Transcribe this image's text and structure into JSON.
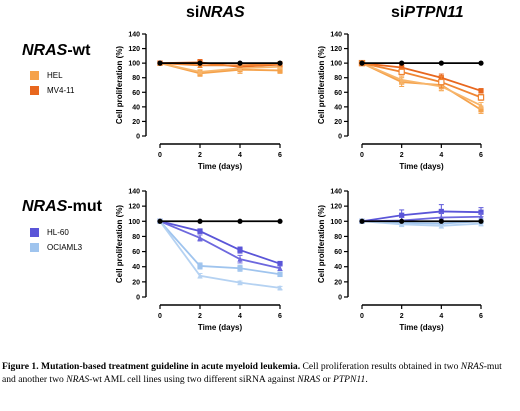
{
  "column_titles": {
    "left": {
      "prefix": "si",
      "italic": "NRAS",
      "suffix": ""
    },
    "right": {
      "prefix": "si",
      "italic": "PTPN11",
      "suffix": ""
    }
  },
  "row_titles": {
    "top": {
      "italic": "NRAS",
      "suffix": "-wt"
    },
    "bottom": {
      "italic": "NRAS",
      "suffix": "-mut"
    }
  },
  "legends": {
    "top": [
      {
        "label": "HEL",
        "color": "#f5a24b"
      },
      {
        "label": "MV4-11",
        "color": "#e8671e"
      }
    ],
    "bottom": [
      {
        "label": "HL-60",
        "color": "#5a55d8"
      },
      {
        "label": "OCIAML3",
        "color": "#9fc4ee"
      }
    ]
  },
  "caption": {
    "figure_label": "Figure 1.",
    "bold_title": "Mutation-based treatment guideline in acute myeloid leukemia.",
    "seg1": " Cell proliferation results obtained in two ",
    "it1": "NRAS",
    "seg2": "-mut and another two ",
    "it2": "NRAS",
    "seg3": "-wt AML cell lines using two different siRNA against ",
    "it3": "NRAS",
    "seg4": " or ",
    "it4": "PTPN11",
    "seg5": "."
  },
  "chart_data": [
    {
      "id": "nras-wt-sinras",
      "type": "line",
      "xlabel": "Time (days)",
      "ylabel": "Cell proliferation (%)",
      "xticks": [
        0,
        2,
        4,
        6
      ],
      "yticks": [
        0,
        20,
        40,
        60,
        80,
        100,
        120,
        140
      ],
      "xlim": [
        0,
        6
      ],
      "ylim": [
        0,
        140
      ],
      "series": [
        {
          "name": "control",
          "color": "#000000",
          "marker": "circle",
          "x": [
            0,
            2,
            4,
            6
          ],
          "y": [
            100,
            100,
            100,
            100
          ],
          "err": [
            0,
            0,
            0,
            0
          ]
        },
        {
          "name": "HEL",
          "color": "#f5a24b",
          "marker": "square",
          "x": [
            0,
            2,
            4,
            6
          ],
          "y": [
            100,
            86,
            91,
            90
          ],
          "err": [
            0,
            4,
            5,
            4
          ]
        },
        {
          "name": "MV4-11",
          "color": "#e8671e",
          "marker": "square",
          "x": [
            0,
            2,
            4,
            6
          ],
          "y": [
            100,
            101,
            95,
            98
          ],
          "err": [
            0,
            4,
            3,
            3
          ]
        },
        {
          "name": "HEL",
          "color": "#f7b56b",
          "marker": "triangle",
          "x": [
            0,
            2,
            4,
            6
          ],
          "y": [
            100,
            88,
            93,
            95
          ],
          "err": [
            0,
            3,
            3,
            3
          ]
        },
        {
          "name": "MV4-11",
          "color": "#ef8533",
          "marker": "triangle",
          "x": [
            0,
            2,
            4,
            6
          ],
          "y": [
            100,
            97,
            97,
            99
          ],
          "err": [
            0,
            3,
            3,
            3
          ]
        }
      ]
    },
    {
      "id": "nras-wt-siptpn11",
      "type": "line",
      "xlabel": "Time (days)",
      "ylabel": "Cell proliferation (%)",
      "xticks": [
        0,
        2,
        4,
        6
      ],
      "yticks": [
        0,
        20,
        40,
        60,
        80,
        100,
        120,
        140
      ],
      "xlim": [
        0,
        6
      ],
      "ylim": [
        0,
        140
      ],
      "series": [
        {
          "name": "control",
          "color": "#000000",
          "marker": "circle",
          "x": [
            0,
            2,
            4,
            6
          ],
          "y": [
            100,
            100,
            100,
            100
          ],
          "err": [
            0,
            0,
            0,
            0
          ]
        },
        {
          "name": "HEL",
          "color": "#f5a24b",
          "marker": "square",
          "x": [
            0,
            2,
            4,
            6
          ],
          "y": [
            100,
            74,
            70,
            36
          ],
          "err": [
            0,
            6,
            7,
            5
          ]
        },
        {
          "name": "HEL",
          "color": "#f7b56b",
          "marker": "triangle",
          "x": [
            0,
            2,
            4,
            6
          ],
          "y": [
            100,
            77,
            68,
            42
          ],
          "err": [
            0,
            5,
            6,
            4
          ]
        },
        {
          "name": "MV4-11",
          "color": "#e8671e",
          "marker": "square",
          "x": [
            0,
            2,
            4,
            6
          ],
          "y": [
            100,
            94,
            80,
            62
          ],
          "err": [
            0,
            4,
            5,
            3
          ]
        },
        {
          "name": "MV4-11",
          "color": "#ef8533",
          "marker": "open-square",
          "x": [
            0,
            2,
            4,
            6
          ],
          "y": [
            100,
            88,
            74,
            53
          ],
          "err": [
            0,
            4,
            8,
            4
          ]
        }
      ]
    },
    {
      "id": "nras-mut-sinras",
      "type": "line",
      "xlabel": "Time (days)",
      "ylabel": "Cell proliferation (%)",
      "xticks": [
        0,
        2,
        4,
        6
      ],
      "yticks": [
        0,
        20,
        40,
        60,
        80,
        100,
        120,
        140
      ],
      "xlim": [
        0,
        6
      ],
      "ylim": [
        0,
        140
      ],
      "series": [
        {
          "name": "control",
          "color": "#000000",
          "marker": "circle",
          "x": [
            0,
            2,
            4,
            6
          ],
          "y": [
            100,
            100,
            100,
            100
          ],
          "err": [
            0,
            0,
            0,
            0
          ]
        },
        {
          "name": "HL-60",
          "color": "#5a55d8",
          "marker": "square",
          "x": [
            0,
            2,
            4,
            6
          ],
          "y": [
            100,
            87,
            62,
            44
          ],
          "err": [
            0,
            3,
            4,
            3
          ]
        },
        {
          "name": "HL-60",
          "color": "#6d68de",
          "marker": "triangle",
          "x": [
            0,
            2,
            4,
            6
          ],
          "y": [
            100,
            78,
            50,
            38
          ],
          "err": [
            0,
            4,
            5,
            3
          ]
        },
        {
          "name": "OCIAML3",
          "color": "#9fc4ee",
          "marker": "square",
          "x": [
            0,
            2,
            4,
            6
          ],
          "y": [
            100,
            41,
            38,
            30
          ],
          "err": [
            0,
            4,
            4,
            3
          ]
        },
        {
          "name": "OCIAML3",
          "color": "#b5d2f2",
          "marker": "triangle",
          "x": [
            0,
            2,
            4,
            6
          ],
          "y": [
            100,
            28,
            19,
            12
          ],
          "err": [
            0,
            3,
            2,
            2
          ]
        }
      ]
    },
    {
      "id": "nras-mut-siptpn11",
      "type": "line",
      "xlabel": "Time (days)",
      "ylabel": "Cell proliferation (%)",
      "xticks": [
        0,
        2,
        4,
        6
      ],
      "yticks": [
        0,
        20,
        40,
        60,
        80,
        100,
        120,
        140
      ],
      "xlim": [
        0,
        6
      ],
      "ylim": [
        0,
        140
      ],
      "series": [
        {
          "name": "control",
          "color": "#000000",
          "marker": "circle",
          "x": [
            0,
            2,
            4,
            6
          ],
          "y": [
            100,
            100,
            100,
            100
          ],
          "err": [
            0,
            0,
            0,
            0
          ]
        },
        {
          "name": "HL-60",
          "color": "#5a55d8",
          "marker": "square",
          "x": [
            0,
            2,
            4,
            6
          ],
          "y": [
            100,
            108,
            113,
            112
          ],
          "err": [
            0,
            7,
            9,
            6
          ]
        },
        {
          "name": "HL-60",
          "color": "#6d68de",
          "marker": "triangle",
          "x": [
            0,
            2,
            4,
            6
          ],
          "y": [
            100,
            101,
            105,
            106
          ],
          "err": [
            0,
            4,
            6,
            5
          ]
        },
        {
          "name": "OCIAML3",
          "color": "#9fc4ee",
          "marker": "square",
          "x": [
            0,
            2,
            4,
            6
          ],
          "y": [
            100,
            98,
            97,
            100
          ],
          "err": [
            0,
            3,
            3,
            3
          ]
        },
        {
          "name": "OCIAML3",
          "color": "#b5d2f2",
          "marker": "triangle",
          "x": [
            0,
            2,
            4,
            6
          ],
          "y": [
            100,
            96,
            94,
            97
          ],
          "err": [
            0,
            3,
            3,
            3
          ]
        }
      ]
    }
  ]
}
